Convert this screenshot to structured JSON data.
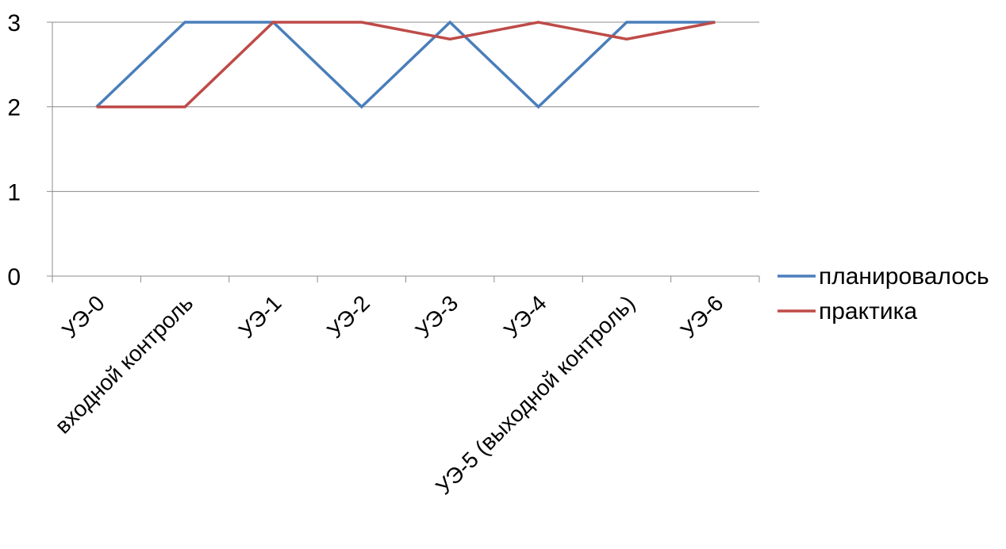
{
  "chart_data": {
    "type": "line",
    "title": "",
    "xlabel": "",
    "ylabel": "",
    "categories": [
      "УЭ-0",
      "входной контроль",
      "УЭ-1",
      "УЭ-2",
      "УЭ-3",
      "УЭ-4",
      "УЭ-5 (выходной контроль)",
      "УЭ-6"
    ],
    "series": [
      {
        "name": "планировалось",
        "color": "#4a7ebb",
        "values": [
          2,
          3,
          3,
          2,
          3,
          2,
          3,
          3
        ]
      },
      {
        "name": "практика",
        "color": "#be4b48",
        "values": [
          2,
          2,
          3,
          3,
          2.8,
          3,
          2.8,
          3
        ]
      }
    ],
    "ylim": [
      0,
      3
    ],
    "yticks": [
      0,
      1,
      2,
      3
    ],
    "grid": true,
    "legend_position": "right"
  }
}
